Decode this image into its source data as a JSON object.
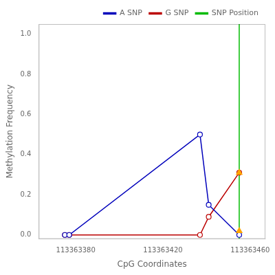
{
  "chart_data": {
    "type": "line",
    "xlabel": "CpG Coordinates",
    "ylabel": "Methylation Frequency",
    "series": [
      {
        "name": "A SNP",
        "color": "#0000bb",
        "marker": "circle",
        "x": [
          113363375,
          113363377,
          113363437,
          113363441,
          113363455
        ],
        "values": [
          0.0,
          0.0,
          0.5,
          0.15,
          0.0
        ]
      },
      {
        "name": "G SNP",
        "color": "#bb0000",
        "marker": "circle",
        "x": [
          113363375,
          113363377,
          113363437,
          113363441,
          113363455
        ],
        "values": [
          0.0,
          0.0,
          0.0,
          0.09,
          0.31
        ]
      },
      {
        "name": "SNP Position",
        "type": "vline",
        "color": "#00bb00",
        "x": [
          113363455
        ]
      },
      {
        "type": "scatter",
        "marker": "triangle",
        "color": "#FFA500",
        "x": [
          113363455,
          113363455
        ],
        "values": [
          0.02,
          0.31
        ]
      }
    ],
    "xlim": [
      113363363,
      113363467
    ],
    "ylim": [
      -0.02,
      1.05
    ],
    "xticks": [
      113363380,
      113363420,
      113363460
    ],
    "yticks": [
      {
        "value": 0.0,
        "label": "0.0"
      },
      0.2,
      0.4,
      0.6,
      0.8,
      {
        "value": 1.0,
        "label": "1.0"
      }
    ],
    "grid": false,
    "legend": "upper right"
  }
}
